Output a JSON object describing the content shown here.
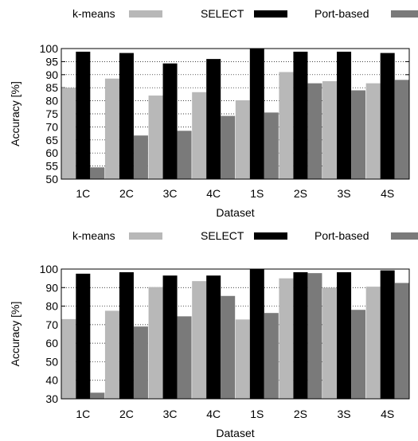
{
  "chart_data": [
    {
      "type": "bar",
      "categories": [
        "1C",
        "2C",
        "3C",
        "4C",
        "1S",
        "2S",
        "3S",
        "4S"
      ],
      "series": [
        {
          "name": "k-means",
          "values": [
            85,
            88.5,
            82,
            83.3,
            80.2,
            91,
            87.5,
            86.7
          ],
          "color": "#b8b8b8"
        },
        {
          "name": "SELECT",
          "values": [
            98.8,
            98.3,
            94.3,
            96,
            100,
            98.8,
            98.8,
            98.3
          ],
          "color": "#000000"
        },
        {
          "name": "Port-based",
          "values": [
            54.5,
            66.7,
            68.5,
            74.2,
            75.5,
            86.7,
            84,
            88
          ],
          "color": "#7a7a7a"
        }
      ],
      "xlabel": "Dataset",
      "ylabel": "Accuracy [%]",
      "ylim": [
        50,
        100
      ],
      "yticks": [
        50,
        55,
        60,
        65,
        70,
        75,
        80,
        85,
        90,
        95,
        100
      ],
      "grid": "horizontal-dotted",
      "legend": "top"
    },
    {
      "type": "bar",
      "categories": [
        "1C",
        "2C",
        "3C",
        "4C",
        "1S",
        "2S",
        "3S",
        "4S"
      ],
      "series": [
        {
          "name": "k-means",
          "values": [
            73,
            77.5,
            90.3,
            93.5,
            72.8,
            95,
            90,
            90.5
          ],
          "color": "#b8b8b8"
        },
        {
          "name": "SELECT",
          "values": [
            97.5,
            98.3,
            96.5,
            96.5,
            100,
            98.3,
            98.3,
            99.3
          ],
          "color": "#000000"
        },
        {
          "name": "Port-based",
          "values": [
            33.3,
            69,
            74.5,
            85.5,
            76.3,
            97.8,
            78,
            92.5
          ],
          "color": "#7a7a7a"
        }
      ],
      "xlabel": "Dataset",
      "ylabel": "Accuracy [%]",
      "ylim": [
        30,
        100
      ],
      "yticks": [
        30,
        40,
        50,
        60,
        70,
        80,
        90,
        100
      ],
      "grid": "horizontal-dotted",
      "legend": "top"
    }
  ]
}
